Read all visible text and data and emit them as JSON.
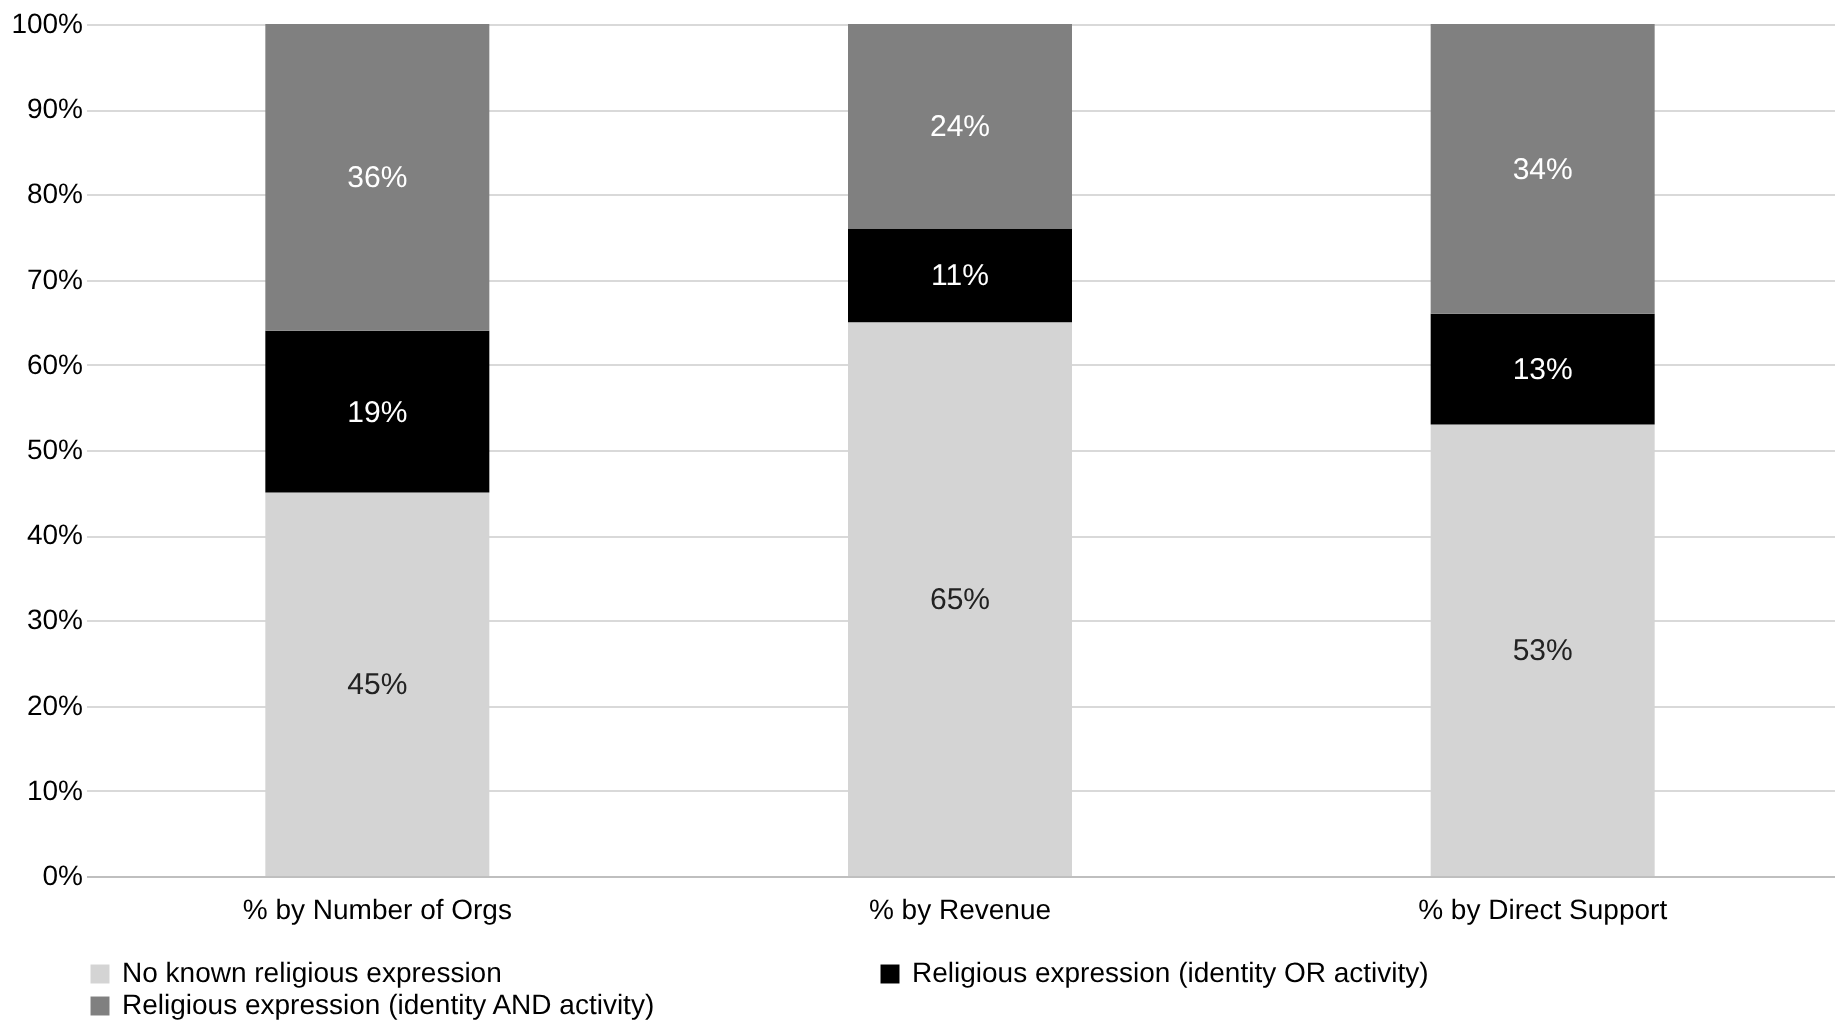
{
  "chart_data": {
    "type": "bar",
    "stacked": true,
    "categories": [
      "% by Number of Orgs",
      "% by Revenue",
      "% by Direct Support"
    ],
    "series": [
      {
        "name": "No known religious expression",
        "color": "#d4d4d4",
        "values": [
          45,
          65,
          53
        ],
        "value_labels": [
          "45%",
          "65%",
          "53%"
        ]
      },
      {
        "name": "Religious expression (identity OR activity)",
        "color": "#000000",
        "values": [
          19,
          11,
          13
        ],
        "value_labels": [
          "19%",
          "11%",
          "13%"
        ]
      },
      {
        "name": "Religious expression (identity AND activity)",
        "color": "#808080",
        "values": [
          36,
          24,
          34
        ],
        "value_labels": [
          "36%",
          "24%",
          "34%"
        ]
      }
    ],
    "ylim": [
      0,
      100
    ],
    "yticks": [
      {
        "value": 0,
        "label": "0%"
      },
      {
        "value": 10,
        "label": "10%"
      },
      {
        "value": 20,
        "label": "20%"
      },
      {
        "value": 30,
        "label": "30%"
      },
      {
        "value": 40,
        "label": "40%"
      },
      {
        "value": 50,
        "label": "50%"
      },
      {
        "value": 60,
        "label": "60%"
      },
      {
        "value": 70,
        "label": "70%"
      },
      {
        "value": 80,
        "label": "80%"
      },
      {
        "value": 90,
        "label": "90%"
      },
      {
        "value": 100,
        "label": "100%"
      }
    ],
    "grid": "y",
    "legend": "bottom"
  }
}
